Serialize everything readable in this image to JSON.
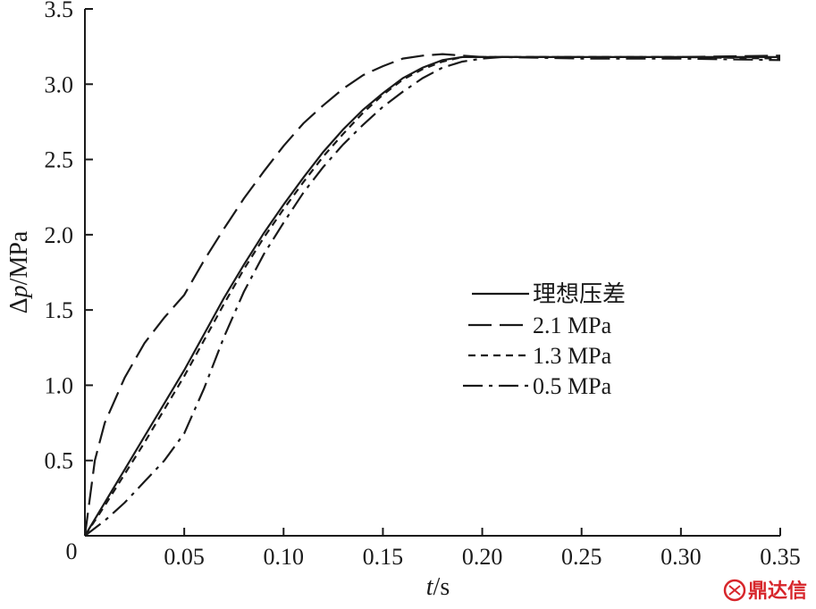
{
  "chart_data": {
    "type": "line",
    "xlabel_var": "t",
    "xlabel_unit": "/s",
    "ylabel_prefix": "Δ",
    "ylabel_var": "p",
    "ylabel_unit": "/MPa",
    "xlim": [
      0,
      0.35
    ],
    "ylim": [
      0,
      3.5
    ],
    "x_ticks": [
      0.05,
      0.1,
      0.15,
      0.2,
      0.25,
      0.3,
      0.35
    ],
    "x_tick_labels": [
      "0.05",
      "0.10",
      "0.15",
      "0.20",
      "0.25",
      "0.30",
      "0.35"
    ],
    "y_ticks": [
      0.5,
      1.0,
      1.5,
      2.0,
      2.5,
      3.0,
      3.5
    ],
    "y_tick_labels": [
      "0.5",
      "1.0",
      "1.5",
      "2.0",
      "2.5",
      "3.0",
      "3.5"
    ],
    "origin_label": "0",
    "grid": false,
    "legend_position": "center-right",
    "series": [
      {
        "name": "理想压差",
        "dash": "solid",
        "x": [
          0,
          0.01,
          0.02,
          0.03,
          0.04,
          0.05,
          0.06,
          0.07,
          0.08,
          0.09,
          0.1,
          0.11,
          0.12,
          0.13,
          0.14,
          0.15,
          0.16,
          0.17,
          0.18,
          0.19,
          0.2,
          0.25,
          0.3,
          0.35
        ],
        "y": [
          0,
          0.22,
          0.44,
          0.66,
          0.88,
          1.1,
          1.34,
          1.58,
          1.8,
          2.01,
          2.2,
          2.38,
          2.55,
          2.7,
          2.83,
          2.94,
          3.04,
          3.11,
          3.16,
          3.18,
          3.18,
          3.18,
          3.18,
          3.18
        ]
      },
      {
        "name": "2.1 MPa",
        "dash": "long-dash",
        "x": [
          0,
          0.005,
          0.01,
          0.02,
          0.03,
          0.04,
          0.05,
          0.06,
          0.07,
          0.08,
          0.09,
          0.1,
          0.11,
          0.12,
          0.13,
          0.14,
          0.15,
          0.16,
          0.17,
          0.18,
          0.19,
          0.2,
          0.25,
          0.3,
          0.35
        ],
        "y": [
          0,
          0.5,
          0.75,
          1.05,
          1.28,
          1.45,
          1.6,
          1.83,
          2.04,
          2.24,
          2.42,
          2.59,
          2.74,
          2.86,
          2.97,
          3.06,
          3.12,
          3.17,
          3.19,
          3.2,
          3.19,
          3.18,
          3.18,
          3.18,
          3.19
        ]
      },
      {
        "name": "1.3 MPa",
        "dash": "short-dash",
        "x": [
          0,
          0.01,
          0.02,
          0.03,
          0.04,
          0.05,
          0.06,
          0.07,
          0.08,
          0.09,
          0.1,
          0.11,
          0.12,
          0.13,
          0.14,
          0.15,
          0.16,
          0.17,
          0.18,
          0.19,
          0.2,
          0.25,
          0.3,
          0.35
        ],
        "y": [
          0,
          0.2,
          0.41,
          0.62,
          0.84,
          1.06,
          1.3,
          1.54,
          1.77,
          1.98,
          2.17,
          2.35,
          2.52,
          2.67,
          2.81,
          2.93,
          3.03,
          3.1,
          3.15,
          3.18,
          3.18,
          3.18,
          3.18,
          3.17
        ]
      },
      {
        "name": "0.5 MPa",
        "dash": "dash-dot",
        "x": [
          0,
          0.01,
          0.02,
          0.03,
          0.04,
          0.05,
          0.06,
          0.07,
          0.08,
          0.09,
          0.1,
          0.11,
          0.12,
          0.13,
          0.14,
          0.15,
          0.16,
          0.17,
          0.18,
          0.19,
          0.2,
          0.21,
          0.25,
          0.3,
          0.35
        ],
        "y": [
          0,
          0.1,
          0.22,
          0.36,
          0.5,
          0.68,
          0.98,
          1.32,
          1.62,
          1.87,
          2.08,
          2.28,
          2.45,
          2.6,
          2.73,
          2.85,
          2.95,
          3.04,
          3.11,
          3.15,
          3.17,
          3.18,
          3.17,
          3.17,
          3.16
        ]
      }
    ]
  },
  "watermark": {
    "text": "鼎达信",
    "color": "#d7262b"
  }
}
